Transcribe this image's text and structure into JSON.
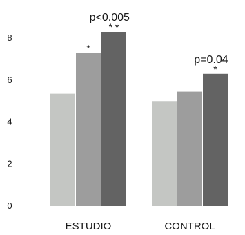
{
  "chart_data": {
    "type": "bar",
    "title": "",
    "xlabel": "",
    "ylabel": "",
    "ylim": [
      0,
      9
    ],
    "yticks": [
      0,
      2,
      4,
      6,
      8
    ],
    "grid": false,
    "legend": "none",
    "categories": [
      "ESTUDIO",
      "CONTROL"
    ],
    "series": [
      {
        "values": [
          5.35,
          5.0
        ]
      },
      {
        "values": [
          7.3,
          5.45
        ]
      },
      {
        "values": [
          8.3,
          6.3
        ]
      }
    ],
    "series_colors": [
      "#c4c6c3",
      "#9d9d9d",
      "#636363"
    ],
    "bar_marks": [
      [
        "",
        "*",
        "* *"
      ],
      [
        "",
        "",
        "*"
      ]
    ],
    "group_pvalues": [
      "p<0.005",
      "p=0.04"
    ]
  }
}
